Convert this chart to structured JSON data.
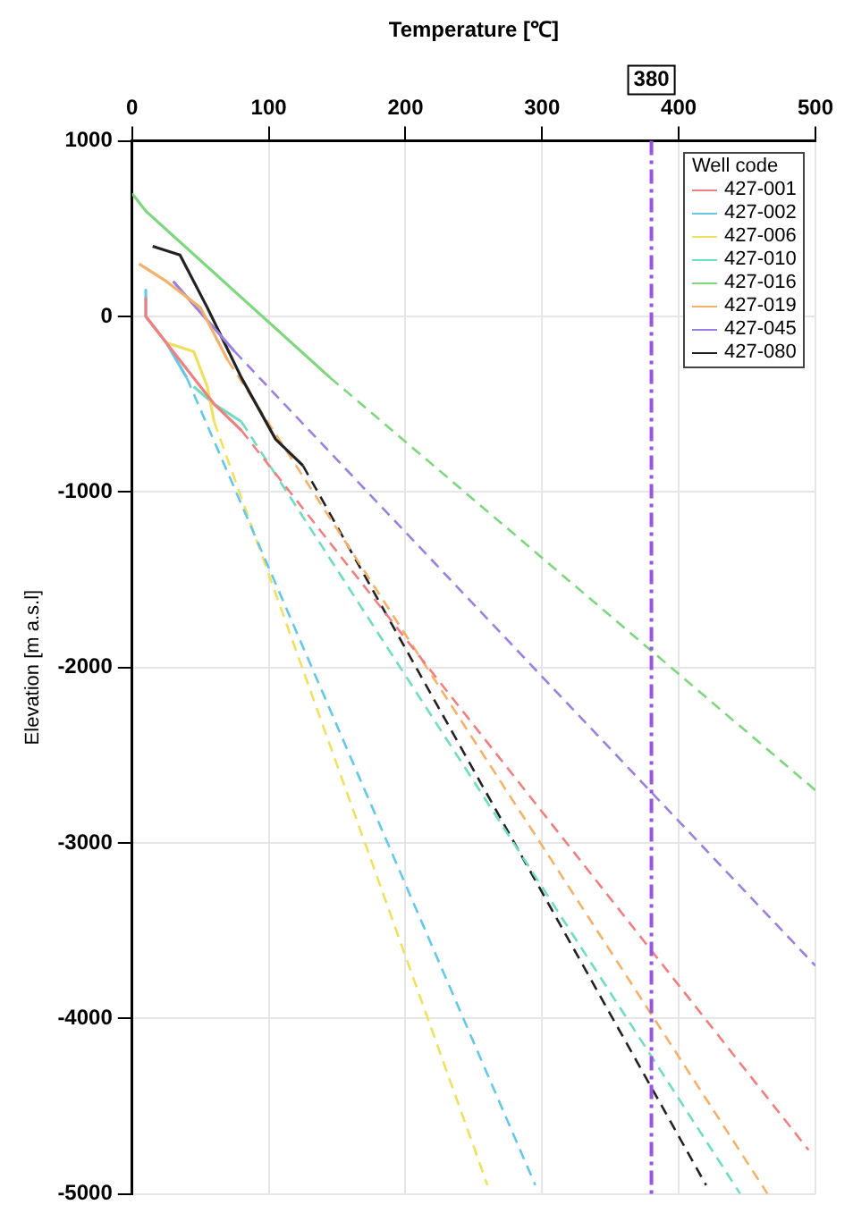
{
  "chart_data": {
    "type": "line",
    "xlabel": "Temperature [℃]",
    "ylabel": "Elevation [m a.s.l]",
    "legend_title": "Well code",
    "xlim": [
      0,
      500
    ],
    "xticks": [
      0,
      100,
      200,
      300,
      400,
      500
    ],
    "ylim": [
      -5000,
      1000
    ],
    "yticks": [
      -5000,
      -4000,
      -3000,
      -2000,
      -1000,
      0,
      1000
    ],
    "grid": true,
    "legend": "top right",
    "ref_lines": [
      {
        "axis": "x",
        "value": 380,
        "label": "380",
        "color": "#9955dd"
      }
    ],
    "series": [
      {
        "name": "427-001",
        "color": "#f08080",
        "line_style": "solid",
        "x": [
          10,
          10,
          45,
          60,
          80
        ],
        "values": [
          100,
          0,
          -350,
          -500,
          -650
        ]
      },
      {
        "name": "427-002",
        "color": "#66c8e8",
        "line_style": "solid",
        "x": [
          10,
          10,
          25,
          40
        ],
        "values": [
          150,
          0,
          -150,
          -350
        ]
      },
      {
        "name": "427-006",
        "color": "#f0e060",
        "line_style": "solid",
        "x": [
          10,
          25,
          45,
          55,
          60
        ],
        "values": [
          0,
          -150,
          -200,
          -400,
          -600
        ]
      },
      {
        "name": "427-010",
        "color": "#70dcc0",
        "line_style": "solid",
        "x": [
          45,
          60,
          80
        ],
        "values": [
          -400,
          -500,
          -600
        ]
      },
      {
        "name": "427-016",
        "color": "#7ed67e",
        "line_style": "solid",
        "x": [
          0,
          10,
          145
        ],
        "values": [
          700,
          600,
          -350
        ]
      },
      {
        "name": "427-019",
        "color": "#f5b06a",
        "line_style": "solid",
        "x": [
          5,
          25,
          50,
          70
        ],
        "values": [
          300,
          200,
          50,
          -250
        ]
      },
      {
        "name": "427-045",
        "color": "#9a80e0",
        "line_style": "solid",
        "x": [
          30,
          75
        ],
        "values": [
          200,
          -200
        ]
      },
      {
        "name": "427-080",
        "color": "#222222",
        "line_style": "solid",
        "x": [
          15,
          35,
          55,
          80,
          105,
          125
        ],
        "values": [
          400,
          350,
          50,
          -350,
          -700,
          -850
        ]
      },
      {
        "color": "#f08080",
        "line_style": "dashed",
        "x": [
          80,
          495
        ],
        "values": [
          -650,
          -4750
        ]
      },
      {
        "color": "#66c8e8",
        "line_style": "dashed",
        "x": [
          40,
          295
        ],
        "values": [
          -350,
          -4950
        ]
      },
      {
        "color": "#f0e060",
        "line_style": "dashed",
        "x": [
          60,
          260
        ],
        "values": [
          -600,
          -4950
        ]
      },
      {
        "color": "#70dcc0",
        "line_style": "dashed",
        "x": [
          80,
          445
        ],
        "values": [
          -600,
          -5000
        ]
      },
      {
        "color": "#7ed67e",
        "line_style": "dashed",
        "x": [
          145,
          500
        ],
        "values": [
          -350,
          -2700
        ]
      },
      {
        "color": "#f5b06a",
        "line_style": "dashed",
        "x": [
          70,
          465
        ],
        "values": [
          -250,
          -5000
        ]
      },
      {
        "color": "#9a80e0",
        "line_style": "dashed",
        "x": [
          75,
          500
        ],
        "values": [
          -200,
          -3700
        ]
      },
      {
        "color": "#222222",
        "line_style": "dashed",
        "x": [
          125,
          420
        ],
        "values": [
          -850,
          -4950
        ]
      }
    ]
  }
}
